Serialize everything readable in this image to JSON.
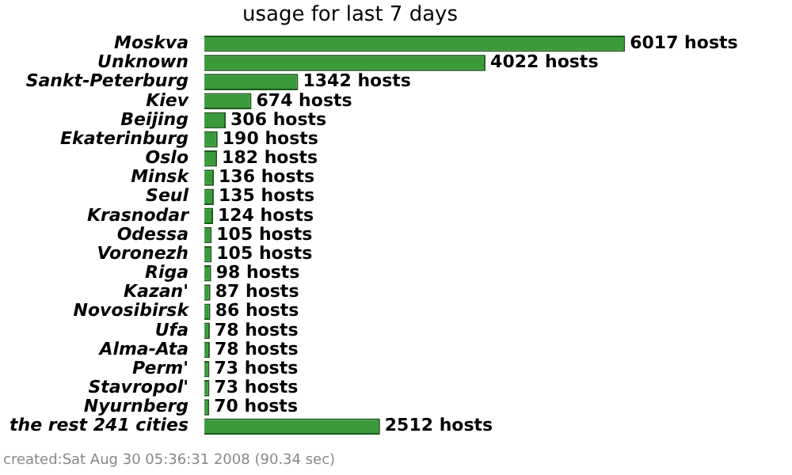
{
  "chart_data": {
    "type": "bar",
    "orientation": "horizontal",
    "title": "usage for last 7 days",
    "categories": [
      "Moskva",
      "Unknown",
      "Sankt-Peterburg",
      "Kiev",
      "Beijing",
      "Ekaterinburg",
      "Oslo",
      "Minsk",
      "Seul",
      "Krasnodar",
      "Odessa",
      "Voronezh",
      "Riga",
      "Kazan'",
      "Novosibirsk",
      "Ufa",
      "Alma-Ata",
      "Perm'",
      "Stavropol'",
      "Nyurnberg",
      "the rest 241 cities"
    ],
    "values": [
      6017,
      4022,
      1342,
      674,
      306,
      190,
      182,
      136,
      135,
      124,
      105,
      105,
      98,
      87,
      86,
      78,
      78,
      73,
      73,
      70,
      2512
    ],
    "value_labels": [
      "6017 hosts",
      "4022 hosts",
      "1342 hosts",
      "674 hosts",
      "306 hosts",
      "190 hosts",
      "182 hosts",
      "136 hosts",
      "135 hosts",
      "124 hosts",
      "105 hosts",
      "105 hosts",
      "98 hosts",
      "87 hosts",
      "86 hosts",
      "78 hosts",
      "78 hosts",
      "73 hosts",
      "73 hosts",
      "70 hosts",
      "2512 hosts"
    ],
    "color": "#3a9a3a",
    "annotations": [
      "created:Sat Aug 30 05:36:31 2008 (90.34 sec)"
    ]
  }
}
